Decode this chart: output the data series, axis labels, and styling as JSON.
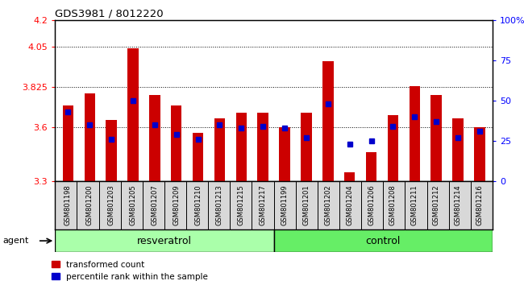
{
  "title": "GDS3981 / 8012220",
  "samples": [
    "GSM801198",
    "GSM801200",
    "GSM801203",
    "GSM801205",
    "GSM801207",
    "GSM801209",
    "GSM801210",
    "GSM801213",
    "GSM801215",
    "GSM801217",
    "GSM801199",
    "GSM801201",
    "GSM801202",
    "GSM801204",
    "GSM801206",
    "GSM801208",
    "GSM801211",
    "GSM801212",
    "GSM801214",
    "GSM801216"
  ],
  "groups": [
    "resveratrol",
    "resveratrol",
    "resveratrol",
    "resveratrol",
    "resveratrol",
    "resveratrol",
    "resveratrol",
    "resveratrol",
    "resveratrol",
    "resveratrol",
    "control",
    "control",
    "control",
    "control",
    "control",
    "control",
    "control",
    "control",
    "control",
    "control"
  ],
  "red_values": [
    3.72,
    3.79,
    3.64,
    4.04,
    3.78,
    3.72,
    3.57,
    3.65,
    3.68,
    3.68,
    3.6,
    3.68,
    3.97,
    3.35,
    3.46,
    3.67,
    3.83,
    3.78,
    3.65,
    3.6
  ],
  "blue_pct": [
    43,
    35,
    26,
    50,
    35,
    29,
    26,
    35,
    33,
    34,
    33,
    27,
    48,
    23,
    25,
    34,
    40,
    37,
    27,
    31
  ],
  "y_min": 3.3,
  "y_max": 4.2,
  "y_ticks": [
    3.3,
    3.6,
    3.825,
    4.05,
    4.2
  ],
  "y_tick_labels": [
    "3.3",
    "3.6",
    "3.825",
    "4.05",
    "4.2"
  ],
  "right_y_ticks": [
    0,
    25,
    50,
    75,
    100
  ],
  "right_y_labels": [
    "0",
    "25",
    "50",
    "75",
    "100%"
  ],
  "bar_color": "#cc0000",
  "dot_color": "#0000cc",
  "resveratrol_color": "#aaffaa",
  "control_color": "#66ee66",
  "agent_label": "agent",
  "xlabel_resveratrol": "resveratrol",
  "xlabel_control": "control",
  "legend_red": "transformed count",
  "legend_blue": "percentile rank within the sample",
  "background_plot": "#ffffff",
  "cell_bg": "#d8d8d8",
  "grid_color": "#000000",
  "n_resv": 10,
  "n_ctrl": 10
}
